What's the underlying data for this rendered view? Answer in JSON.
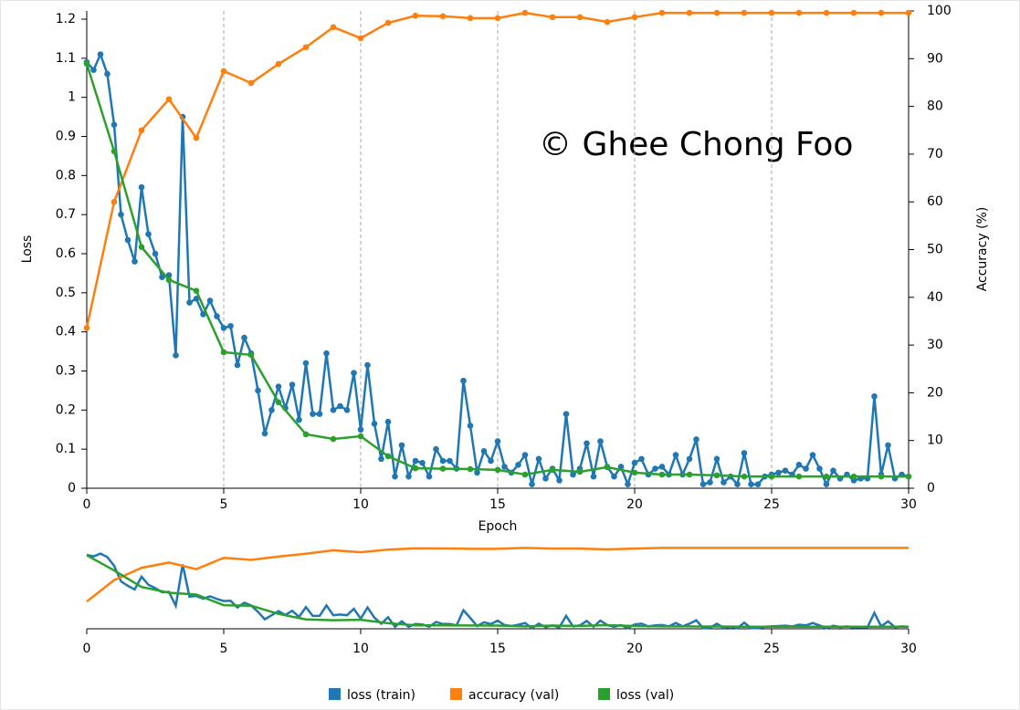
{
  "chart_data": {
    "type": "line",
    "xlabel": "Epoch",
    "ylabel": "Loss",
    "y2label": "Accuracy (%)",
    "annotation": "© Ghee Chong Foo",
    "xlim": [
      0,
      30
    ],
    "xticks": [
      0,
      5,
      10,
      15,
      20,
      25,
      30
    ],
    "ylim": [
      0,
      1.2
    ],
    "yticks": [
      0,
      0.1,
      0.2,
      0.3,
      0.4,
      0.5,
      0.6,
      0.7,
      0.8,
      0.9,
      1,
      1.1,
      1.2
    ],
    "y2lim": [
      0,
      100
    ],
    "y2ticks": [
      0,
      10,
      20,
      30,
      40,
      50,
      60,
      70,
      80,
      90,
      100
    ],
    "grid_x": true,
    "series": [
      {
        "name": "loss (train)",
        "color": "#1f77b4",
        "axis": "y",
        "x": [
          0,
          0.25,
          0.5,
          0.75,
          1,
          1.25,
          1.5,
          1.75,
          2,
          2.25,
          2.5,
          2.75,
          3,
          3.25,
          3.5,
          3.75,
          4,
          4.25,
          4.5,
          4.75,
          5,
          5.25,
          5.5,
          5.75,
          6,
          6.25,
          6.5,
          6.75,
          7,
          7.25,
          7.5,
          7.75,
          8,
          8.25,
          8.5,
          8.75,
          9,
          9.25,
          9.5,
          9.75,
          10,
          10.25,
          10.5,
          10.75,
          11,
          11.25,
          11.5,
          11.75,
          12,
          12.25,
          12.5,
          12.75,
          13,
          13.25,
          13.5,
          13.75,
          14,
          14.25,
          14.5,
          14.75,
          15,
          15.25,
          15.5,
          15.75,
          16,
          16.25,
          16.5,
          16.75,
          17,
          17.25,
          17.5,
          17.75,
          18,
          18.25,
          18.5,
          18.75,
          19,
          19.25,
          19.5,
          19.75,
          20,
          20.25,
          20.5,
          20.75,
          21,
          21.25,
          21.5,
          21.75,
          22,
          22.25,
          22.5,
          22.75,
          23,
          23.25,
          23.5,
          23.75,
          24,
          24.25,
          24.5,
          24.75,
          25,
          25.25,
          25.5,
          25.75,
          26,
          26.25,
          26.5,
          26.75,
          27,
          27.25,
          27.5,
          27.75,
          28,
          28.25,
          28.5,
          28.75,
          29,
          29.25,
          29.5,
          29.75,
          30
        ],
        "values": [
          1.09,
          1.07,
          1.11,
          1.06,
          0.93,
          0.7,
          0.635,
          0.58,
          0.77,
          0.65,
          0.6,
          0.54,
          0.545,
          0.34,
          0.95,
          0.475,
          0.485,
          0.445,
          0.48,
          0.44,
          0.41,
          0.415,
          0.315,
          0.385,
          0.345,
          0.25,
          0.14,
          0.2,
          0.26,
          0.205,
          0.265,
          0.175,
          0.32,
          0.19,
          0.19,
          0.345,
          0.2,
          0.21,
          0.2,
          0.295,
          0.15,
          0.315,
          0.165,
          0.075,
          0.17,
          0.03,
          0.11,
          0.03,
          0.07,
          0.065,
          0.03,
          0.1,
          0.07,
          0.07,
          0.05,
          0.275,
          0.16,
          0.04,
          0.095,
          0.07,
          0.12,
          0.055,
          0.04,
          0.06,
          0.085,
          0.01,
          0.075,
          0.025,
          0.05,
          0.02,
          0.19,
          0.035,
          0.05,
          0.115,
          0.03,
          0.12,
          0.055,
          0.03,
          0.055,
          0.01,
          0.065,
          0.075,
          0.035,
          0.05,
          0.055,
          0.035,
          0.085,
          0.035,
          0.075,
          0.125,
          0.01,
          0.015,
          0.075,
          0.015,
          0.03,
          0.01,
          0.09,
          0.01,
          0.01,
          0.03,
          0.035,
          0.04,
          0.045,
          0.035,
          0.06,
          0.05,
          0.085,
          0.05,
          0.01,
          0.045,
          0.025,
          0.035,
          0.02,
          0.025,
          0.025,
          0.235,
          0.035,
          0.11,
          0.025,
          0.035,
          0.03
        ]
      },
      {
        "name": "accuracy (val)",
        "color": "#ff7f0e",
        "axis": "y2",
        "x": [
          0,
          1,
          2,
          3,
          4,
          5,
          6,
          7,
          8,
          9,
          10,
          11,
          12,
          13,
          14,
          15,
          16,
          17,
          18,
          19,
          20,
          21,
          22,
          23,
          24,
          25,
          26,
          27,
          28,
          29,
          30
        ],
        "values": [
          33.6,
          60,
          75,
          81.5,
          73.4,
          87.4,
          84.9,
          88.9,
          92.4,
          96.6,
          94.3,
          97.5,
          99,
          98.9,
          98.5,
          98.5,
          99.6,
          98.7,
          98.7,
          97.7,
          98.7,
          99.6,
          99.6,
          99.6,
          99.6,
          99.6,
          99.6,
          99.6,
          99.6,
          99.6,
          99.6
        ]
      },
      {
        "name": "loss (val)",
        "color": "#2ca02c",
        "axis": "y",
        "x": [
          0,
          1,
          2,
          3,
          4,
          5,
          6,
          7,
          8,
          9,
          10,
          11,
          12,
          13,
          14,
          15,
          16,
          17,
          18,
          19,
          20,
          21,
          22,
          23,
          24,
          25,
          26,
          27,
          28,
          29,
          30
        ],
        "values": [
          1.086,
          0.862,
          0.617,
          0.533,
          0.505,
          0.348,
          0.341,
          0.22,
          0.138,
          0.126,
          0.133,
          0.082,
          0.051,
          0.05,
          0.049,
          0.047,
          0.035,
          0.047,
          0.042,
          0.054,
          0.04,
          0.035,
          0.035,
          0.033,
          0.03,
          0.03,
          0.03,
          0.03,
          0.03,
          0.03,
          0.03
        ]
      }
    ]
  }
}
